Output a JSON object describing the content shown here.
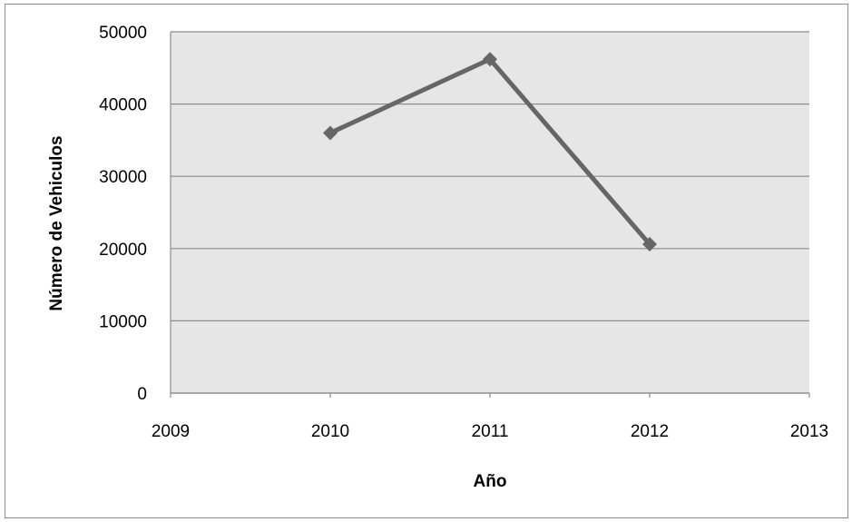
{
  "chart_data": {
    "type": "line",
    "title": "",
    "xlabel": "Año",
    "ylabel": "Número de Vehiculos",
    "xlim": [
      2009,
      2013
    ],
    "ylim": [
      0,
      50000
    ],
    "x_ticks": [
      "2009",
      "2010",
      "2011",
      "2012",
      "2013"
    ],
    "y_ticks": [
      "0",
      "10000",
      "20000",
      "30000",
      "40000",
      "50000"
    ],
    "grid": true,
    "legend": "none",
    "series": [
      {
        "x": [
          2010,
          2011,
          2012
        ],
        "y": [
          36000,
          46200,
          20600
        ],
        "color": "#666666",
        "marker": "diamond"
      }
    ],
    "plot_background": "#e6e6e6",
    "gridline_color": "#8c8c8c"
  }
}
